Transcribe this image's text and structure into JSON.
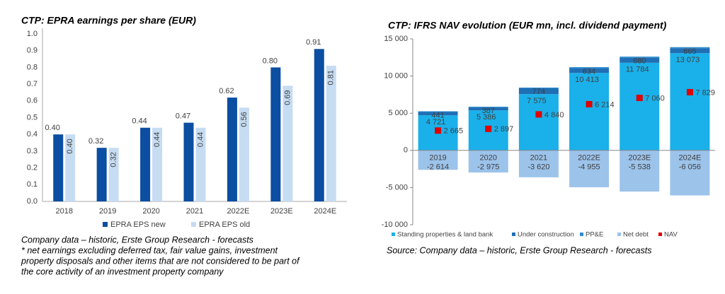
{
  "chart_data": [
    {
      "type": "bar",
      "title": "CTP: EPRA earnings per share (EUR)",
      "categories": [
        "2018",
        "2019",
        "2020",
        "2021",
        "2022E",
        "2023E",
        "2024E"
      ],
      "series": [
        {
          "name": "EPRA EPS new",
          "color": "#0b4ea2",
          "values": [
            0.4,
            0.32,
            0.44,
            0.47,
            0.62,
            0.8,
            0.91
          ],
          "value_labels": [
            "0.40",
            "0.32",
            "0.44",
            "0.47",
            "0.62",
            "0.80",
            "0.91"
          ]
        },
        {
          "name": "EPRA EPS old",
          "color": "#c6dcf2",
          "values": [
            0.4,
            0.32,
            0.44,
            0.44,
            0.56,
            0.69,
            0.81
          ],
          "value_labels": [
            "0.40",
            "0.32",
            "0.44",
            "0.44",
            "0.56",
            "0.69",
            "0.81"
          ]
        }
      ],
      "ylim": [
        0,
        1
      ],
      "yticks": [
        {
          "value": 0,
          "label": "0.0"
        },
        0.1,
        0.2,
        0.3,
        0.4,
        0.5,
        0.6,
        0.7,
        0.8,
        0.9,
        {
          "value": 1,
          "label": "1.0"
        }
      ],
      "legend": "bottom",
      "notes": [
        "Company data – historic, Erste Group Research - forecasts",
        "* net earnings excluding deferred tax, fair value gains, investment",
        "property disposals and other items that are not considered to be part of",
        "the core activity of an investment property company"
      ]
    },
    {
      "type": "stacked_bar",
      "title": "CTP: IFRS NAV evolution (EUR mn, incl. dividend payment)",
      "categories": [
        "2019",
        "2020",
        "2021",
        "2022E",
        "2023E",
        "2024E"
      ],
      "series": [
        {
          "name": "Standing properties & land bank",
          "color": "#1ab0ea",
          "values": [
            4721,
            5386,
            7575,
            10413,
            11784,
            13073
          ],
          "value_labels": [
            "4 721",
            "5 386",
            "7 575",
            "10 413",
            "11 784",
            "13 073"
          ]
        },
        {
          "name": "Under construction",
          "color": "#1f6fb5",
          "values": [
            441,
            387,
            774,
            634,
            680,
            665
          ]
        },
        {
          "name": "PP&E",
          "color": "#2e8bd0",
          "values": [
            100,
            100,
            100,
            150,
            150,
            150
          ]
        },
        {
          "name": "Net debt",
          "color": "#9cc3ea",
          "values": [
            -2614,
            -2975,
            -3620,
            -4955,
            -5538,
            -6056
          ],
          "value_labels": [
            "-2 614",
            "-2 975",
            "-3 620",
            "-4 955",
            "-5 538",
            "-6 056"
          ]
        },
        {
          "name": "NAV",
          "color": "#e00000",
          "type": "scatter",
          "values": [
            2665,
            2897,
            4840,
            6214,
            7060,
            7829
          ],
          "value_labels": [
            "2 665",
            "2 897",
            "4 840",
            "6 214",
            "7 060",
            "7 829"
          ]
        }
      ],
      "ylim": [
        -10000,
        15000
      ],
      "yticks": [
        {
          "value": -10000,
          "label": "-10 000"
        },
        {
          "value": -5000,
          "label": "-5 000"
        },
        0,
        {
          "value": 5000,
          "label": "5 000"
        },
        {
          "value": 10000,
          "label": "10 000"
        },
        {
          "value": 15000,
          "label": "15 000"
        }
      ],
      "legend": "bottom",
      "notes": [
        "Source: Company data – historic, Erste Group Research - forecasts"
      ]
    }
  ]
}
